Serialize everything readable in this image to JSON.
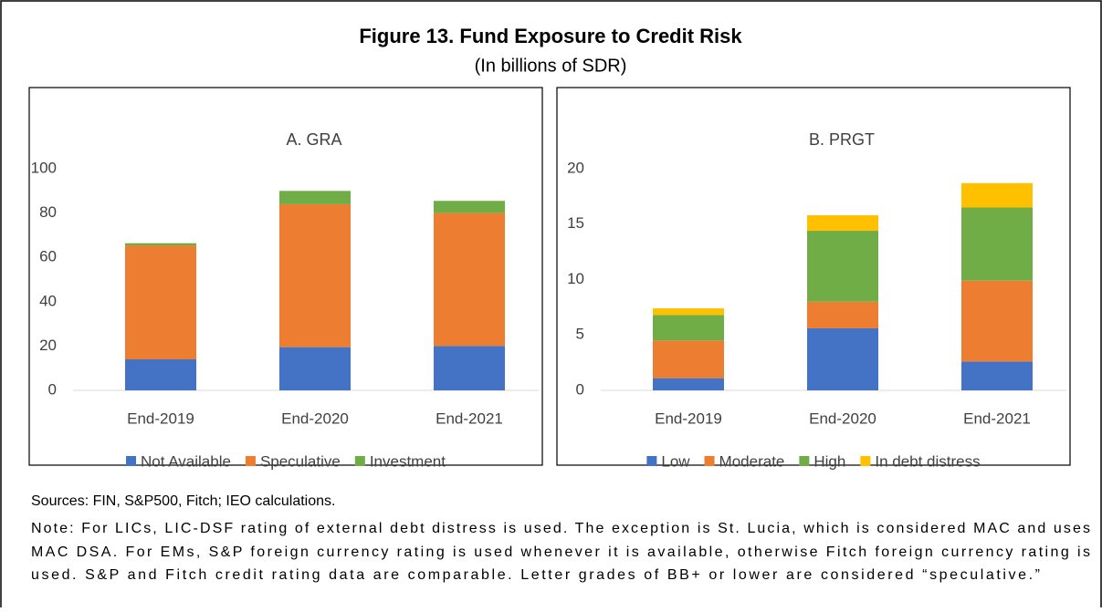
{
  "title": "Figure 13. Fund Exposure to Credit Risk",
  "subtitle": "(In billions of SDR)",
  "sources": "Sources: FIN, S&P500,  Fitch; IEO calculations.",
  "note_lines": [
    "Note: For LICs, LIC-DSF rating of external debt distress is used. The exception is St. Lucia, which is considered MAC and uses",
    "MAC DSA.  For EMs, S&P foreign currency rating is used whenever it is available, otherwise Fitch  foreign currency rating is",
    "used. S&P and Fitch credit rating data are comparable. Letter grades of BB+ or lower are considered “speculative.”"
  ],
  "chart_data": [
    {
      "type": "stacked_bar",
      "title": "A. GRA",
      "categories": [
        "End-2019",
        "End-2020",
        "End-2021"
      ],
      "series": [
        {
          "name": "Not Available",
          "color": "#4472c4",
          "values": [
            14,
            19.5,
            20
          ]
        },
        {
          "name": "Speculative",
          "color": "#ed7d31",
          "values": [
            51.4,
            64.5,
            60
          ]
        },
        {
          "name": "Investment",
          "color": "#70ad47",
          "values": [
            1,
            6,
            5.5
          ]
        }
      ],
      "ylim": [
        0,
        100
      ],
      "yticks": [
        0,
        20,
        40,
        60,
        80,
        100
      ],
      "grid": false,
      "legend": "bottom"
    },
    {
      "type": "stacked_bar",
      "title": "B. PRGT",
      "categories": [
        "End-2019",
        "End-2020",
        "End-2021"
      ],
      "series": [
        {
          "name": "Low",
          "color": "#4472c4",
          "values": [
            1.1,
            5.6,
            2.6
          ]
        },
        {
          "name": "Moderate",
          "color": "#ed7d31",
          "values": [
            3.4,
            2.4,
            7.3
          ]
        },
        {
          "name": "High",
          "color": "#70ad47",
          "values": [
            2.3,
            6.4,
            6.6
          ]
        },
        {
          "name": "In debt distress",
          "color": "#ffc000",
          "values": [
            0.6,
            1.4,
            2.2
          ]
        }
      ],
      "ylim": [
        0,
        20
      ],
      "yticks": [
        0,
        5,
        10,
        15,
        20
      ],
      "grid": false,
      "legend": "bottom"
    }
  ]
}
